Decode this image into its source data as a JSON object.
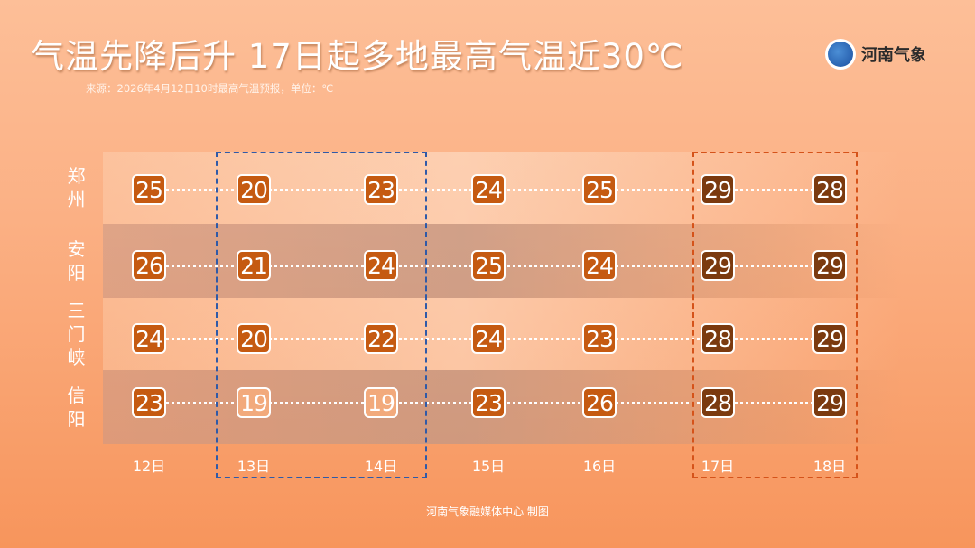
{
  "title": "气温先降后升 17日起多地最高气温近30℃",
  "subtitle": "来源：2026年4月12日10时最高气温预报，单位：℃",
  "logo": {
    "text": "河南气象"
  },
  "footer": "河南气象融媒体中心  制图",
  "colors": {
    "warm": "#c55a11",
    "hot": "#7b3a0f",
    "cool": "#f2aa7c",
    "box_cool": "#2f5aa8",
    "box_hot": "#d5531a"
  },
  "chart_data": {
    "type": "table",
    "categories": [
      "12日",
      "13日",
      "14日",
      "15日",
      "16日",
      "17日",
      "18日"
    ],
    "rows": [
      {
        "city": "郑州",
        "values": [
          25,
          20,
          23,
          24,
          25,
          29,
          28
        ]
      },
      {
        "city": "安阳",
        "values": [
          26,
          21,
          24,
          25,
          24,
          29,
          29
        ]
      },
      {
        "city": "三门峡",
        "values": [
          24,
          20,
          22,
          24,
          23,
          28,
          29
        ]
      },
      {
        "city": "信阳",
        "values": [
          23,
          19,
          19,
          23,
          26,
          28,
          29
        ]
      }
    ],
    "highlight_cool": [
      "13日",
      "14日"
    ],
    "highlight_hot": [
      "17日",
      "18日"
    ]
  }
}
